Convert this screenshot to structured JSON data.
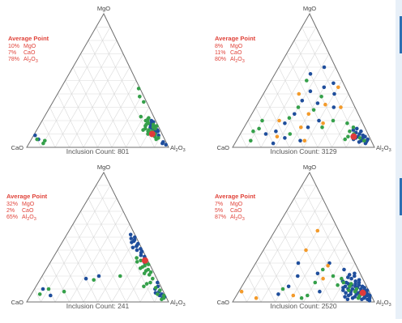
{
  "colors": {
    "blue": "#1f4e9c",
    "green": "#35a04a",
    "orange": "#f39a2a",
    "red": "#e03b3b",
    "label_red": "#e0433a",
    "grid": "#d9d9d9",
    "outline": "#6f6f6f"
  },
  "vertex_labels": {
    "top": "MgO",
    "left": "CaO",
    "right": "Al2O3"
  },
  "chart_data": [
    {
      "type": "scatter",
      "title": "",
      "count_label": "Inclusion Count: 801",
      "avg_title": "Average Point",
      "avg_rows": [
        [
          "10%",
          "MgO"
        ],
        [
          "7%",
          "CaO"
        ],
        [
          "78%",
          "Al2O3"
        ]
      ],
      "average": {
        "MgO": 10,
        "CaO": 7,
        "Al2O3": 78
      },
      "grid": true,
      "series": [
        {
          "color": "blue",
          "points": [
            [
              19,
              2
            ],
            [
              16,
              3
            ],
            [
              14,
              5
            ],
            [
              13,
              4
            ],
            [
              12,
              2
            ],
            [
              15,
              6
            ],
            [
              18,
              4
            ],
            [
              20,
              3
            ],
            [
              11,
              4
            ],
            [
              13,
              2
            ],
            [
              9,
              3
            ],
            [
              17,
              5
            ],
            [
              9,
              90
            ],
            [
              6,
              89
            ],
            [
              2,
              1
            ],
            [
              4,
              2
            ],
            [
              3,
              3
            ]
          ]
        },
        {
          "color": "green",
          "points": [
            [
              18,
              6
            ],
            [
              17,
              3
            ],
            [
              21,
              5
            ],
            [
              12,
              6
            ],
            [
              14,
              3
            ],
            [
              16,
              1
            ],
            [
              10,
              5
            ],
            [
              13,
              8
            ],
            [
              15,
              4
            ],
            [
              19,
              6
            ],
            [
              22,
              4
            ],
            [
              11,
              8
            ],
            [
              14,
              10
            ],
            [
              12,
              9
            ],
            [
              16,
              9
            ],
            [
              20,
              7
            ],
            [
              8,
              6
            ],
            [
              17,
              8
            ],
            [
              13,
              12
            ],
            [
              10,
              10
            ],
            [
              7,
              4
            ],
            [
              6,
              6
            ],
            [
              34,
              2
            ],
            [
              38,
              3
            ],
            [
              44,
              1
            ],
            [
              23,
              9
            ],
            [
              5,
              85
            ],
            [
              3,
              87
            ],
            [
              6,
              90
            ]
          ]
        }
      ]
    },
    {
      "type": "scatter",
      "title": "",
      "count_label": "Inclusion Count: 3129",
      "avg_title": "Average Point",
      "avg_rows": [
        [
          "8%",
          "MgO"
        ],
        [
          "11%",
          "CaO"
        ],
        [
          "80%",
          "Al2O3"
        ]
      ],
      "average": {
        "MgO": 8,
        "CaO": 11,
        "Al2O3": 80
      },
      "grid": true,
      "series": [
        {
          "color": "blue",
          "points": [
            [
              4,
              4
            ],
            [
              6,
              6
            ],
            [
              5,
              3
            ],
            [
              7,
              5
            ],
            [
              8,
              8
            ],
            [
              3,
              5
            ],
            [
              5,
              7
            ],
            [
              6,
              2
            ],
            [
              9,
              4
            ],
            [
              7,
              10
            ],
            [
              4,
              9
            ],
            [
              8,
              3
            ],
            [
              10,
              6
            ],
            [
              11,
              8
            ],
            [
              12,
              4
            ],
            [
              6,
              12
            ],
            [
              9,
              11
            ],
            [
              13,
              9
            ],
            [
              14,
              6
            ],
            [
              40,
              10
            ],
            [
              45,
              15
            ],
            [
              55,
              20
            ],
            [
              42,
              26
            ],
            [
              60,
              8
            ],
            [
              48,
              7
            ],
            [
              30,
              15
            ],
            [
              33,
              25
            ],
            [
              20,
              30
            ],
            [
              15,
              40
            ],
            [
              25,
              45
            ],
            [
              35,
              35
            ],
            [
              7,
              60
            ],
            [
              3,
              70
            ],
            [
              10,
              72
            ],
            [
              5,
              50
            ],
            [
              18,
              55
            ],
            [
              12,
              64
            ]
          ]
        },
        {
          "color": "green",
          "points": [
            [
              5,
              5
            ],
            [
              7,
              7
            ],
            [
              10,
              10
            ],
            [
              12,
              12
            ],
            [
              15,
              8
            ],
            [
              18,
              11
            ],
            [
              8,
              15
            ],
            [
              6,
              18
            ],
            [
              20,
              20
            ],
            [
              28,
              30
            ],
            [
              30,
              40
            ],
            [
              22,
              50
            ],
            [
              10,
              55
            ],
            [
              50,
              25
            ],
            [
              38,
              20
            ],
            [
              15,
              30
            ],
            [
              14,
              75
            ],
            [
              20,
              70
            ],
            [
              12,
              80
            ],
            [
              5,
              85
            ]
          ]
        },
        {
          "color": "orange",
          "points": [
            [
              32,
              20
            ],
            [
              25,
              35
            ],
            [
              15,
              45
            ],
            [
              40,
              35
            ],
            [
              5,
              47
            ],
            [
              20,
              58
            ],
            [
              30,
              10
            ],
            [
              8,
              65
            ],
            [
              18,
              28
            ],
            [
              45,
              5
            ]
          ]
        }
      ]
    },
    {
      "type": "scatter",
      "title": "",
      "count_label": "Inclusion Count: 241",
      "avg_title": "Average Point",
      "avg_rows": [
        [
          "32%",
          "MgO"
        ],
        [
          "2%",
          "CaO"
        ],
        [
          "65%",
          "Al2O3"
        ]
      ],
      "average": {
        "MgO": 32,
        "CaO": 2,
        "Al2O3": 65
      },
      "grid": true,
      "series": [
        {
          "color": "blue",
          "points": [
            [
              45,
              1
            ],
            [
              48,
              2
            ],
            [
              43,
              3
            ],
            [
              50,
              1
            ],
            [
              38,
              2
            ],
            [
              40,
              4
            ],
            [
              35,
              1
            ],
            [
              46,
              5
            ],
            [
              41,
              1
            ],
            [
              52,
              3
            ],
            [
              36,
              3
            ],
            [
              44,
              2
            ],
            [
              47,
              3
            ],
            [
              39,
              1
            ],
            [
              33,
              2
            ],
            [
              49,
              4
            ],
            [
              30,
              3
            ],
            [
              42,
              6
            ],
            [
              8,
              3
            ],
            [
              6,
              2
            ],
            [
              10,
              5
            ],
            [
              12,
              2
            ],
            [
              5,
              4
            ],
            [
              3,
              3
            ],
            [
              15,
              1
            ],
            [
              4,
              1
            ],
            [
              7,
              6
            ],
            [
              20,
              40
            ],
            [
              18,
              50
            ],
            [
              10,
              84
            ],
            [
              5,
              81
            ]
          ]
        },
        {
          "color": "green",
          "points": [
            [
              30,
              2
            ],
            [
              28,
              4
            ],
            [
              25,
              3
            ],
            [
              32,
              5
            ],
            [
              27,
              6
            ],
            [
              23,
              2
            ],
            [
              34,
              7
            ],
            [
              29,
              1
            ],
            [
              26,
              8
            ],
            [
              21,
              4
            ],
            [
              18,
              3
            ],
            [
              15,
              6
            ],
            [
              24,
              5
            ],
            [
              31,
              8
            ],
            [
              22,
              7
            ],
            [
              9,
              2
            ],
            [
              11,
              4
            ],
            [
              6,
              5
            ],
            [
              3,
              2
            ],
            [
              2,
              4
            ],
            [
              5,
              1
            ],
            [
              20,
              25
            ],
            [
              17,
              45
            ],
            [
              8,
              70
            ],
            [
              10,
              80
            ],
            [
              6,
              88
            ],
            [
              12,
              12
            ],
            [
              14,
              9
            ]
          ]
        }
      ]
    },
    {
      "type": "scatter",
      "title": "",
      "count_label": "Inclusion Count: 2520",
      "avg_title": "Average Point",
      "avg_rows": [
        [
          "7%",
          "MgO"
        ],
        [
          "5%",
          "CaO"
        ],
        [
          "87%",
          "Al2O3"
        ]
      ],
      "average": {
        "MgO": 7,
        "CaO": 5,
        "Al2O3": 87
      },
      "grid": true,
      "series": [
        {
          "color": "blue",
          "points": [
            [
              3,
              2
            ],
            [
              5,
              3
            ],
            [
              4,
              5
            ],
            [
              6,
              2
            ],
            [
              7,
              4
            ],
            [
              8,
              6
            ],
            [
              2,
              4
            ],
            [
              9,
              3
            ],
            [
              10,
              5
            ],
            [
              6,
              7
            ],
            [
              4,
              9
            ],
            [
              11,
              7
            ],
            [
              3,
              6
            ],
            [
              5,
              1
            ],
            [
              8,
              2
            ],
            [
              12,
              3
            ],
            [
              13,
              5
            ],
            [
              7,
              8
            ],
            [
              9,
              9
            ],
            [
              14,
              7
            ],
            [
              2,
              8
            ],
            [
              10,
              11
            ],
            [
              15,
              4
            ],
            [
              6,
              10
            ],
            [
              11,
              2
            ],
            [
              12,
              8
            ],
            [
              4,
              12
            ],
            [
              16,
              6
            ],
            [
              17,
              3
            ],
            [
              8,
              13
            ],
            [
              9,
              1
            ],
            [
              13,
              10
            ],
            [
              3,
              14
            ],
            [
              18,
              8
            ],
            [
              14,
              12
            ],
            [
              5,
              16
            ],
            [
              1,
              3
            ],
            [
              10,
              14
            ],
            [
              20,
              5
            ],
            [
              6,
              14
            ],
            [
              19,
              10
            ],
            [
              12,
              15
            ],
            [
              7,
              17
            ],
            [
              15,
              13
            ],
            [
              2,
              18
            ],
            [
              21,
              8
            ],
            [
              16,
              15
            ],
            [
              9,
              18
            ],
            [
              11,
              17
            ],
            [
              4,
              19
            ],
            [
              22,
              4
            ],
            [
              25,
              10
            ],
            [
              30,
              18
            ],
            [
              22,
              30
            ],
            [
              8,
              35
            ],
            [
              12,
              55
            ],
            [
              6,
              65
            ],
            [
              30,
              40
            ],
            [
              20,
              45
            ]
          ]
        },
        {
          "color": "green",
          "points": [
            [
              5,
              8
            ],
            [
              8,
              10
            ],
            [
              10,
              8
            ],
            [
              12,
              12
            ],
            [
              6,
              5
            ],
            [
              9,
              14
            ],
            [
              3,
              10
            ],
            [
              14,
              10
            ],
            [
              15,
              15
            ],
            [
              18,
              15
            ],
            [
              20,
              20
            ],
            [
              5,
              45
            ],
            [
              3,
              50
            ],
            [
              10,
              60
            ],
            [
              15,
              35
            ],
            [
              25,
              25
            ],
            [
              13,
              20
            ]
          ]
        },
        {
          "color": "orange",
          "points": [
            [
              55,
              15
            ],
            [
              40,
              30
            ],
            [
              5,
              55
            ],
            [
              8,
              90
            ],
            [
              3,
              82
            ],
            [
              28,
              20
            ],
            [
              18,
              28
            ]
          ]
        }
      ]
    }
  ]
}
